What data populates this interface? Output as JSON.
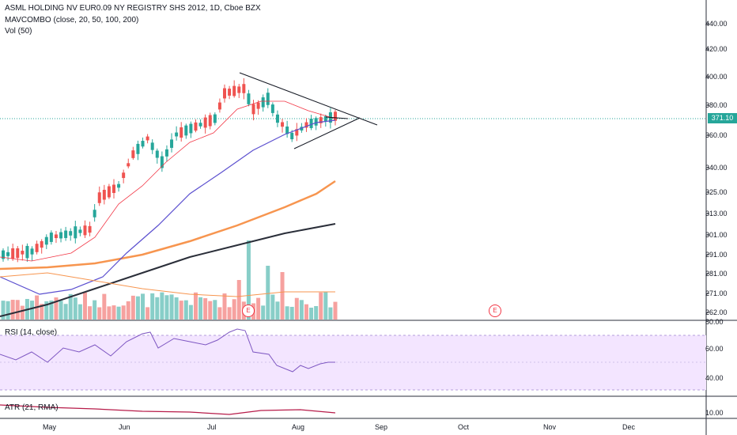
{
  "legend": {
    "title": "ASML HOLDING NV EUR0.09 NY REGISTRY SHS 2012, 1D, Cboe BZX",
    "mavcombo": "MAVCOMBO (close, 20, 50, 100, 200)",
    "vol": "Vol (50)",
    "rsi": "RSI (14, close)",
    "atr": "ATR (21, RMA)"
  },
  "price_scale": [
    "440.00",
    "420.00",
    "400.00",
    "380.00",
    "360.00",
    "340.00",
    "325.00",
    "313.00",
    "301.00",
    "291.00",
    "281.00",
    "271.00",
    "262.00"
  ],
  "current_price": "371.10",
  "rsi_scale": [
    "80.00",
    "60.00",
    "40.00"
  ],
  "atr_scale": [
    "10.00"
  ],
  "x_axis": [
    "May",
    "Jun",
    "Jul",
    "Aug",
    "Sep",
    "Oct",
    "Nov",
    "Dec"
  ],
  "earnings_marker": "E",
  "colors": {
    "up": "#26a69a",
    "down": "#ef5350",
    "ma20": "#f23645",
    "ma50": "#5b4fcf",
    "ma100": "#f7954f",
    "ma200": "#2a2e39",
    "rsi": "#7e57c2",
    "rsi_band": "#f3e5ff",
    "atr": "#b71c4a",
    "price_line": "#26a69a"
  }
}
